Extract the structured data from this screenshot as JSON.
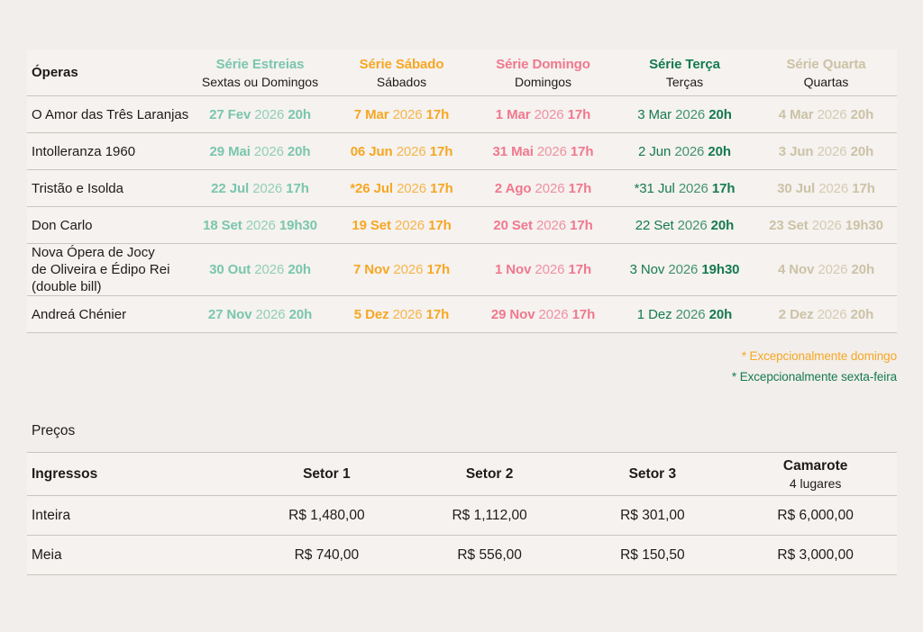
{
  "schedule": {
    "col_header_label": "Óperas",
    "series": [
      {
        "name": "Série Estreias",
        "subtitle": "Sextas ou Domingos",
        "color": "#7AC6AE"
      },
      {
        "name": "Série Sábado",
        "subtitle": "Sábados",
        "color": "#F6A723"
      },
      {
        "name": "Série Domingo",
        "subtitle": "Domingos",
        "color": "#F0788E"
      },
      {
        "name": "Série Terça",
        "subtitle": "Terças",
        "color": "#167A51"
      },
      {
        "name": "Série Quarta",
        "subtitle": "Quartas",
        "color": "#CCC2A6"
      }
    ],
    "rows": [
      {
        "opera": "O Amor das Três Laranjas",
        "dates": [
          {
            "day": "27 Fev",
            "year": "2026",
            "time": "20h"
          },
          {
            "day": "7 Mar",
            "year": "2026",
            "time": "17h"
          },
          {
            "day": "1 Mar",
            "year": "2026",
            "time": "17h"
          },
          {
            "day": "3 Mar",
            "year": "2026",
            "time": "20h"
          },
          {
            "day": "4 Mar",
            "year": "2026",
            "time": "20h"
          }
        ]
      },
      {
        "opera": "Intolleranza 1960",
        "dates": [
          {
            "day": "29 Mai",
            "year": "2026",
            "time": "20h"
          },
          {
            "day": "06 Jun",
            "year": "2026",
            "time": "17h"
          },
          {
            "day": "31 Mai",
            "year": "2026",
            "time": "17h"
          },
          {
            "day": "2 Jun",
            "year": "2026",
            "time": "20h"
          },
          {
            "day": "3 Jun",
            "year": "2026",
            "time": "20h"
          }
        ]
      },
      {
        "opera": "Tristão e Isolda",
        "dates": [
          {
            "day": "22 Jul",
            "year": "2026",
            "time": "17h"
          },
          {
            "day": "*26 Jul",
            "year": "2026",
            "time": "17h"
          },
          {
            "day": "2 Ago",
            "year": "2026",
            "time": "17h"
          },
          {
            "day": "*31 Jul",
            "year": "2026",
            "time": "17h"
          },
          {
            "day": "30 Jul",
            "year": "2026",
            "time": "17h"
          }
        ]
      },
      {
        "opera": "Don Carlo",
        "dates": [
          {
            "day": "18 Set",
            "year": "2026",
            "time": "19h30"
          },
          {
            "day": "19 Set",
            "year": "2026",
            "time": "17h"
          },
          {
            "day": "20 Set",
            "year": "2026",
            "time": "17h"
          },
          {
            "day": "22 Set",
            "year": "2026",
            "time": "20h"
          },
          {
            "day": "23 Set",
            "year": "2026",
            "time": "19h30"
          }
        ]
      },
      {
        "opera": "Nova Ópera de Jocy\nde Oliveira e Édipo Rei\n(double bill)",
        "dates": [
          {
            "day": "30 Out",
            "year": "2026",
            "time": "20h"
          },
          {
            "day": "7 Nov",
            "year": "2026",
            "time": "17h"
          },
          {
            "day": "1 Nov",
            "year": "2026",
            "time": "17h"
          },
          {
            "day": "3 Nov",
            "year": "2026",
            "time": "19h30"
          },
          {
            "day": "4 Nov",
            "year": "2026",
            "time": "20h"
          }
        ]
      },
      {
        "opera": "Andreá Chénier",
        "dates": [
          {
            "day": "27 Nov",
            "year": "2026",
            "time": "20h"
          },
          {
            "day": "5 Dez",
            "year": "2026",
            "time": "17h"
          },
          {
            "day": "29 Nov",
            "year": "2026",
            "time": "17h"
          },
          {
            "day": "1 Dez",
            "year": "2026",
            "time": "20h"
          },
          {
            "day": "2 Dez",
            "year": "2026",
            "time": "20h"
          }
        ]
      }
    ]
  },
  "notes": [
    {
      "text": "* Excepcionalmente domingo",
      "color": "#F6A723"
    },
    {
      "text": "* Excepcionalmente sexta-feira",
      "color": "#167A51"
    }
  ],
  "prices": {
    "section_title": "Preços",
    "header": {
      "label": "Ingressos",
      "columns": [
        {
          "name": "Setor 1"
        },
        {
          "name": "Setor 2"
        },
        {
          "name": "Setor 3"
        },
        {
          "name": "Camarote",
          "subtitle": "4 lugares"
        }
      ]
    },
    "rows": [
      {
        "label": "Inteira",
        "values": [
          "R$ 1,480,00",
          "R$ 1,112,00",
          "R$ 301,00",
          "R$ 6,000,00"
        ]
      },
      {
        "label": "Meia",
        "values": [
          "R$ 740,00",
          "R$ 556,00",
          "R$ 150,50",
          "R$ 3,000,00"
        ]
      }
    ]
  }
}
